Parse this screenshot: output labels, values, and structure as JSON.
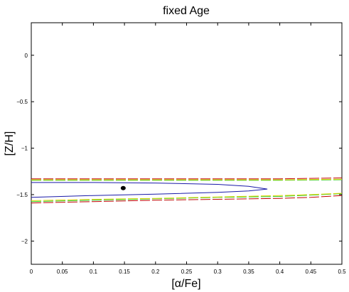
{
  "chart_data": {
    "type": "line",
    "title": "fixed Age",
    "xlabel": "[α/Fe]",
    "ylabel": "[Z/H]",
    "xlim": [
      0,
      0.5
    ],
    "ylim": [
      -2.25,
      0.35
    ],
    "x_ticks": [
      0,
      0.05,
      0.1,
      0.15,
      0.2,
      0.25,
      0.3,
      0.35,
      0.4,
      0.45,
      0.5
    ],
    "x_tick_labels": [
      "0",
      "0.05",
      "0.1",
      "0.15",
      "0.2",
      "0.25",
      "0.3",
      "0.35",
      "0.4",
      "0.45",
      "0.5"
    ],
    "y_ticks": [
      0,
      -0.5,
      -1,
      -1.5,
      -2
    ],
    "y_tick_labels": [
      "0",
      "−0.5",
      "−1",
      "−1.5",
      "−2"
    ],
    "grid": false,
    "legend": "none",
    "series": [
      {
        "color": "#c00000",
        "style": "dashed contour",
        "segments": [
          {
            "x": [
              0,
              0.1,
              0.2,
              0.3,
              0.4,
              0.5
            ],
            "y": [
              -1.33,
              -1.33,
              -1.33,
              -1.33,
              -1.33,
              -1.32
            ]
          },
          {
            "x": [
              0,
              0.1,
              0.2,
              0.3,
              0.4,
              0.45,
              0.5
            ],
            "y": [
              -1.59,
              -1.575,
              -1.56,
              -1.55,
              -1.54,
              -1.53,
              -1.51
            ]
          }
        ]
      },
      {
        "color": "#2ec81e",
        "style": "dashed contour",
        "segments": [
          {
            "x": [
              0,
              0.1,
              0.2,
              0.3,
              0.4,
              0.5
            ],
            "y": [
              -1.345,
              -1.345,
              -1.345,
              -1.345,
              -1.345,
              -1.34
            ]
          },
          {
            "x": [
              0,
              0.1,
              0.2,
              0.3,
              0.4,
              0.45,
              0.5
            ],
            "y": [
              -1.575,
              -1.56,
              -1.545,
              -1.53,
              -1.52,
              -1.505,
              -1.49
            ]
          }
        ]
      },
      {
        "color": "#e5d60a",
        "style": "dashed contour",
        "segments": [
          {
            "x": [
              0,
              0.1,
              0.2,
              0.3,
              0.4,
              0.5
            ],
            "y": [
              -1.34,
              -1.34,
              -1.34,
              -1.34,
              -1.34,
              -1.335
            ]
          },
          {
            "x": [
              0,
              0.1,
              0.2,
              0.3,
              0.4,
              0.45,
              0.5
            ],
            "y": [
              -1.565,
              -1.55,
              -1.54,
              -1.525,
              -1.51,
              -1.5,
              -1.485
            ]
          }
        ]
      },
      {
        "color": "#1a1aa8",
        "style": "contour",
        "segments": [
          {
            "x": [
              0,
              0.1,
              0.2,
              0.3,
              0.35,
              0.38,
              0.35,
              0.3,
              0.2,
              0.1,
              0
            ],
            "y": [
              -1.37,
              -1.37,
              -1.375,
              -1.39,
              -1.41,
              -1.44,
              -1.46,
              -1.475,
              -1.495,
              -1.51,
              -1.53
            ]
          }
        ]
      }
    ],
    "best_fit_point": {
      "x": 0.148,
      "y": -1.43,
      "color": "#000000"
    }
  }
}
